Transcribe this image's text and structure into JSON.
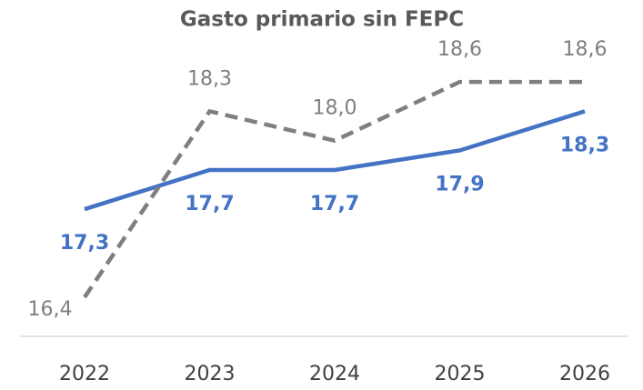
{
  "chart_data": {
    "type": "line",
    "title": "Gasto primario sin FEPC",
    "categories": [
      "2022",
      "2023",
      "2024",
      "2025",
      "2026"
    ],
    "series": [
      {
        "color": "#4472c4",
        "dash": false,
        "values": [
          17.3,
          17.7,
          17.7,
          17.9,
          18.3
        ],
        "value_labels": [
          "17,3",
          "17,7",
          "17,7",
          "17,9",
          "18,3"
        ]
      },
      {
        "color": "#7f7f7f",
        "dash": true,
        "values": [
          16.4,
          18.3,
          18.0,
          18.6,
          18.6
        ],
        "value_labels": [
          "16,4",
          "18,3",
          "18,0",
          "18,6",
          "18,6"
        ]
      }
    ],
    "ylim": [
      16.0,
      19.4
    ],
    "grid": false
  }
}
